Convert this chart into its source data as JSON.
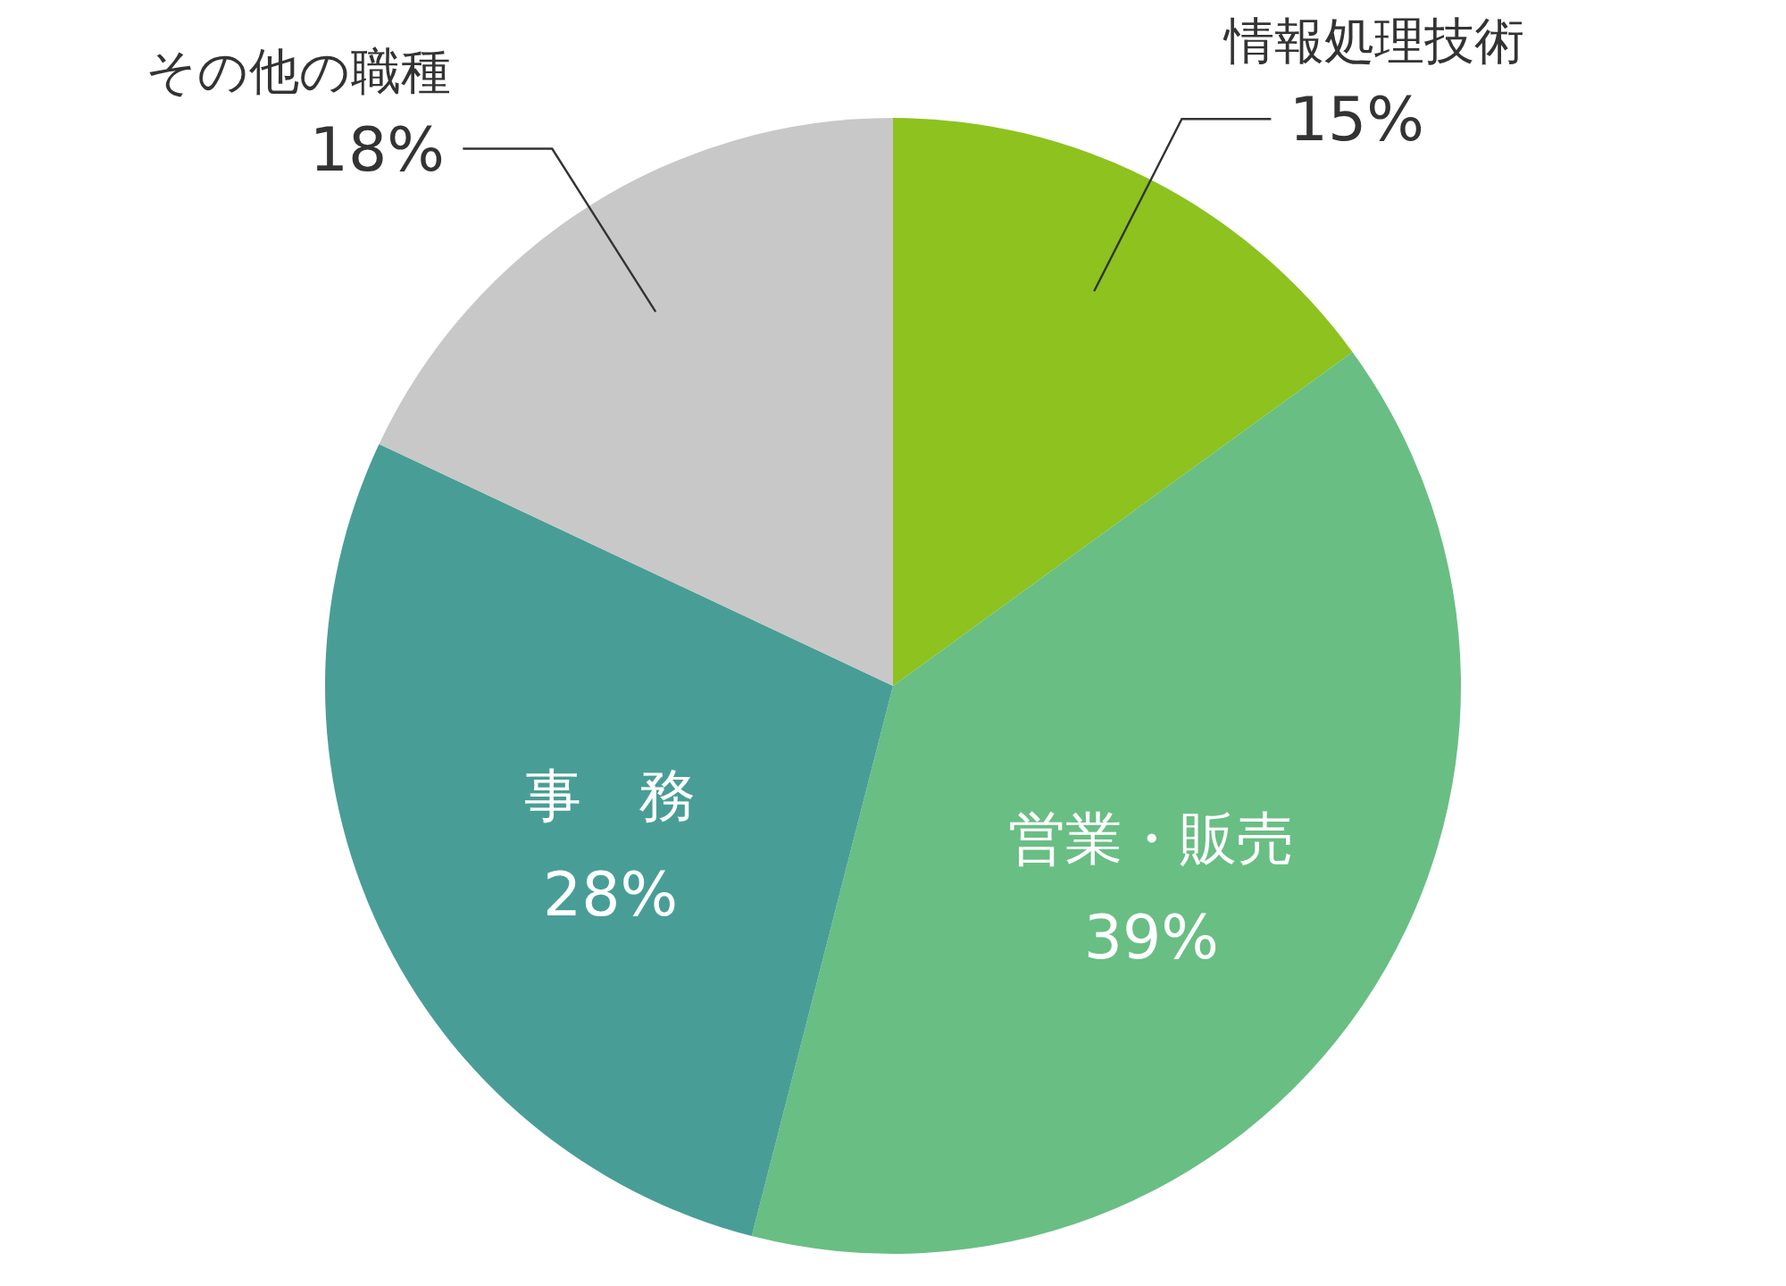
{
  "chart_data": {
    "type": "pie",
    "categories": [
      "情報処理技術",
      "営業・販売",
      "事　務",
      "その他の職種"
    ],
    "values": [
      15,
      39,
      28,
      18
    ],
    "colors": [
      "#8dc21f",
      "#69be84",
      "#489e96",
      "#c8c8c8"
    ],
    "value_labels": [
      "15%",
      "39%",
      "28%",
      "18%"
    ],
    "legend": false
  }
}
